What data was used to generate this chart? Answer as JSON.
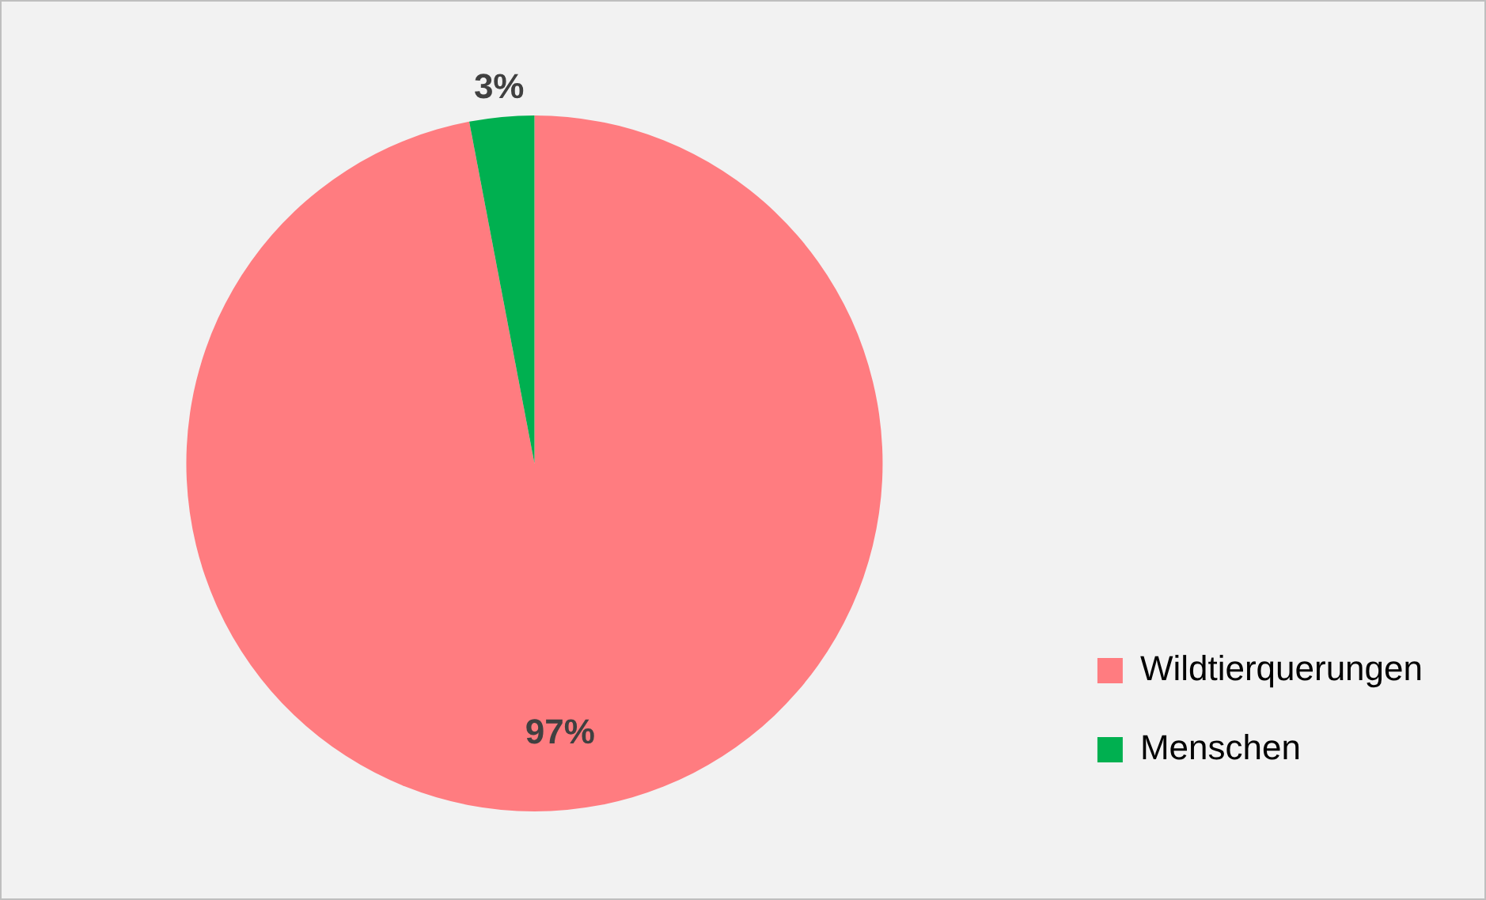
{
  "chart_data": {
    "type": "pie",
    "categories": [
      "Wildtierquerungen",
      "Menschen"
    ],
    "values": [
      97,
      3
    ],
    "colors": [
      "#ff7c80",
      "#00b050"
    ],
    "value_labels": [
      "97%",
      "3%"
    ],
    "legend": "bottom right"
  }
}
